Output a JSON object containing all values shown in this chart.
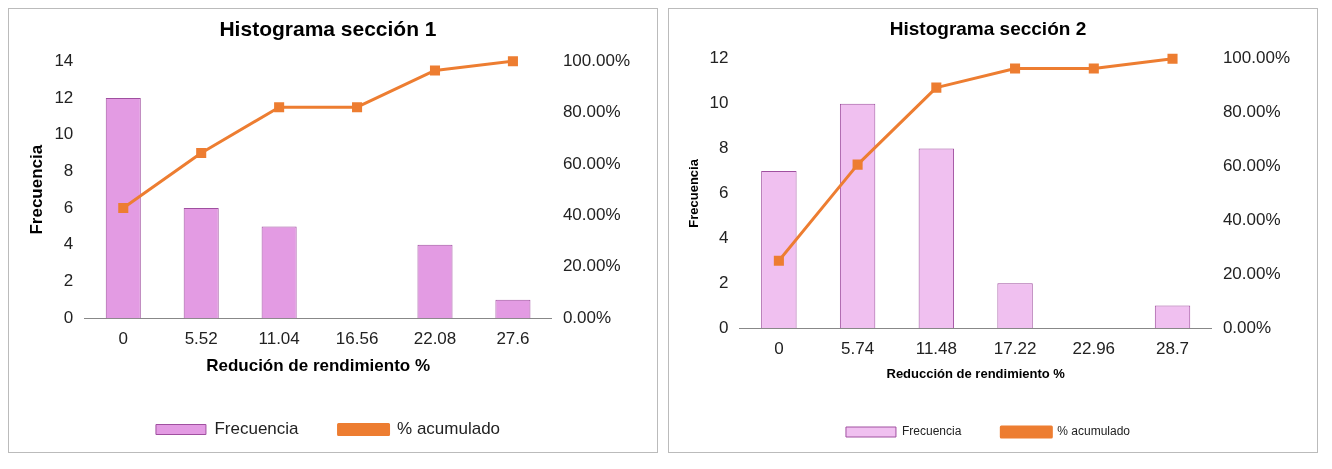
{
  "chart_data": [
    {
      "type": "bar",
      "title": "Histograma sección 1",
      "xlabel": "Redución de rendimiento %",
      "ylabel": "Frecuencia",
      "categories": [
        "0",
        "5.52",
        "11.04",
        "16.56",
        "22.08",
        "27.6"
      ],
      "series": [
        {
          "name": "Frecuencia",
          "color": "#e39be3",
          "values": [
            12,
            6,
            5,
            0,
            4,
            1
          ]
        },
        {
          "name": "% acumulado",
          "type": "line",
          "axis": "y2",
          "color": "#ed7d31",
          "values": [
            42.9,
            64.3,
            82.1,
            82.1,
            96.4,
            100
          ]
        }
      ],
      "ylim": [
        0,
        14
      ],
      "yticks": [
        0,
        2,
        4,
        6,
        8,
        10,
        12,
        14
      ],
      "y2lim": [
        0,
        100
      ],
      "y2ticks": [
        {
          "value": 0,
          "label": "0.00%"
        },
        {
          "value": 20,
          "label": "20.00%"
        },
        {
          "value": 40,
          "label": "40.00%"
        },
        {
          "value": 60,
          "label": "60.00%"
        },
        {
          "value": 80,
          "label": "80.00%"
        },
        {
          "value": 100,
          "label": "100.00%"
        }
      ],
      "legend": "bottom",
      "marker": "square",
      "grid": false
    },
    {
      "type": "bar",
      "title": "Histograma sección 2",
      "xlabel": "Reducción de rendimiento %",
      "ylabel": "Frecuencia",
      "categories": [
        "0",
        "5.74",
        "11.48",
        "17.22",
        "22.96",
        "28.7"
      ],
      "series": [
        {
          "name": "Frecuencia",
          "color": "#f0c0f0",
          "values": [
            7,
            10,
            8,
            2,
            0,
            1
          ]
        },
        {
          "name": "% acumulado",
          "type": "line",
          "axis": "y2",
          "color": "#ed7d31",
          "values": [
            25,
            60.7,
            89.3,
            96.4,
            96.4,
            100
          ]
        }
      ],
      "ylim": [
        0,
        12
      ],
      "yticks": [
        0,
        2,
        4,
        6,
        8,
        10,
        12
      ],
      "y2lim": [
        0,
        100
      ],
      "y2ticks": [
        {
          "value": 0,
          "label": "0.00%"
        },
        {
          "value": 20,
          "label": "20.00%"
        },
        {
          "value": 40,
          "label": "40.00%"
        },
        {
          "value": 60,
          "label": "60.00%"
        },
        {
          "value": 80,
          "label": "80.00%"
        },
        {
          "value": 100,
          "label": "100.00%"
        }
      ],
      "legend": "bottom",
      "marker": "square",
      "grid": false
    }
  ]
}
